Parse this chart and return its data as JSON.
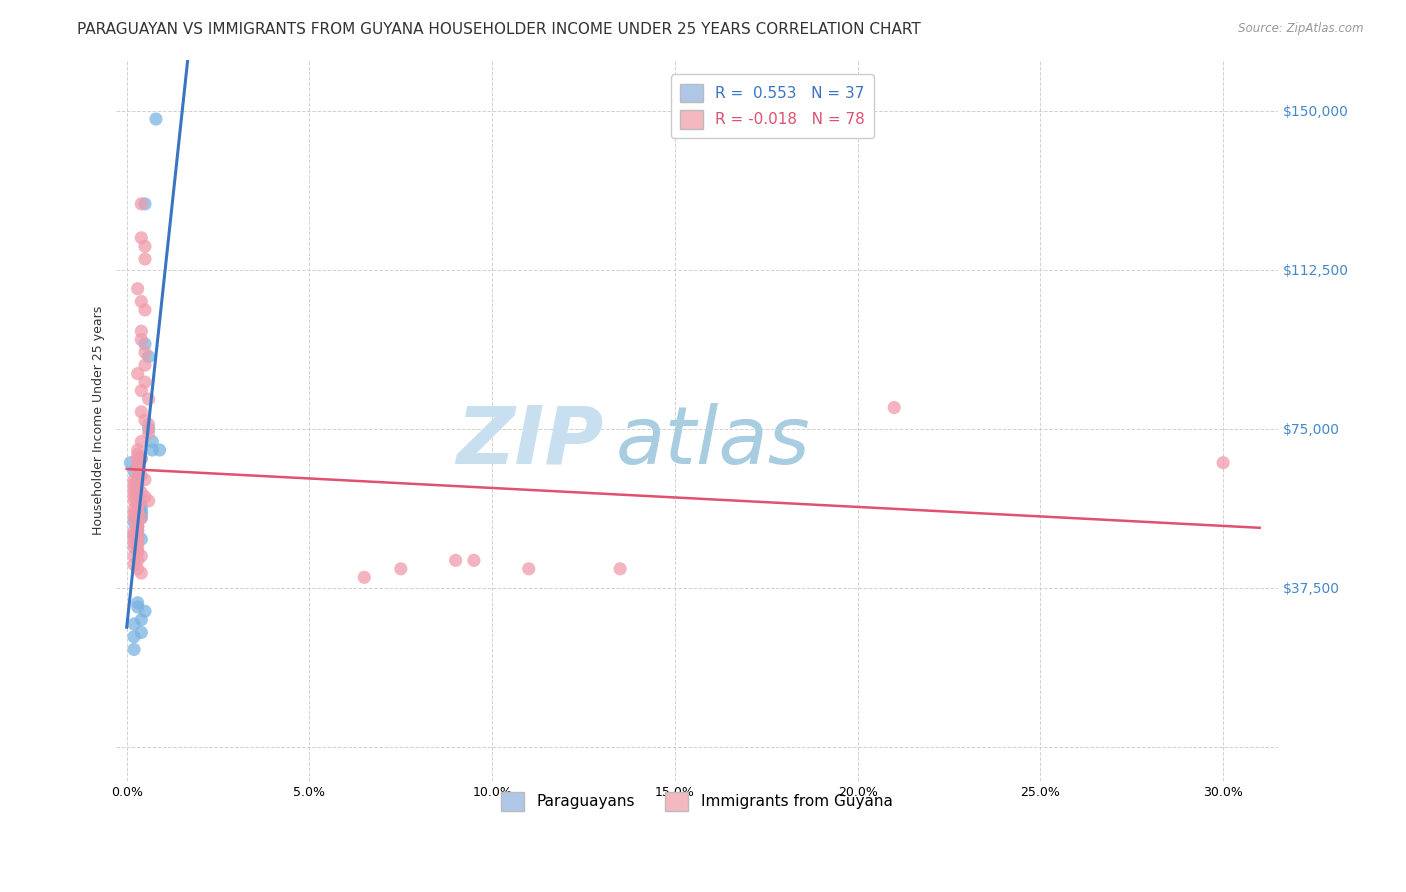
{
  "title": "PARAGUAYAN VS IMMIGRANTS FROM GUYANA HOUSEHOLDER INCOME UNDER 25 YEARS CORRELATION CHART",
  "source": "Source: ZipAtlas.com",
  "ylabel": "Householder Income Under 25 years",
  "xlabel_ticks": [
    "0.0%",
    "5.0%",
    "10.0%",
    "15.0%",
    "20.0%",
    "25.0%",
    "30.0%"
  ],
  "xlabel_vals": [
    0.0,
    0.05,
    0.1,
    0.15,
    0.2,
    0.25,
    0.3
  ],
  "ylabel_vals": [
    0,
    37500,
    75000,
    112500,
    150000
  ],
  "xlim": [
    -0.003,
    0.315
  ],
  "ylim": [
    -8000,
    162000
  ],
  "legend_labels_bottom": [
    "Paraguayans",
    "Immigrants from Guyana"
  ],
  "paraguayan_x": [
    0.008,
    0.005,
    0.005,
    0.006,
    0.006,
    0.007,
    0.007,
    0.001,
    0.002,
    0.003,
    0.003,
    0.003,
    0.003,
    0.003,
    0.003,
    0.003,
    0.004,
    0.004,
    0.004,
    0.004,
    0.004,
    0.002,
    0.003,
    0.004,
    0.003,
    0.002,
    0.003,
    0.004,
    0.009,
    0.003,
    0.003,
    0.005,
    0.004,
    0.002,
    0.004,
    0.002,
    0.002
  ],
  "paraguayan_y": [
    148000,
    128000,
    95000,
    92000,
    75000,
    72000,
    70000,
    67000,
    65000,
    63000,
    63000,
    62000,
    61000,
    60000,
    58000,
    57000,
    57000,
    56000,
    55000,
    55000,
    54000,
    53000,
    52000,
    68000,
    51000,
    50000,
    50000,
    49000,
    70000,
    34000,
    33000,
    32000,
    30000,
    29000,
    27000,
    26000,
    23000
  ],
  "guyana_x": [
    0.004,
    0.004,
    0.005,
    0.005,
    0.003,
    0.004,
    0.005,
    0.004,
    0.004,
    0.005,
    0.005,
    0.003,
    0.005,
    0.004,
    0.006,
    0.004,
    0.005,
    0.006,
    0.006,
    0.004,
    0.003,
    0.003,
    0.003,
    0.004,
    0.003,
    0.003,
    0.003,
    0.004,
    0.005,
    0.003,
    0.003,
    0.004,
    0.005,
    0.006,
    0.003,
    0.003,
    0.003,
    0.004,
    0.003,
    0.003,
    0.003,
    0.003,
    0.003,
    0.002,
    0.002,
    0.003,
    0.004,
    0.002,
    0.002,
    0.002,
    0.002,
    0.002,
    0.002,
    0.003,
    0.002,
    0.002,
    0.002,
    0.003,
    0.003,
    0.002,
    0.002,
    0.002,
    0.003,
    0.003,
    0.003,
    0.002,
    0.003,
    0.002,
    0.003,
    0.004,
    0.065,
    0.075,
    0.09,
    0.095,
    0.11,
    0.135,
    0.21,
    0.3
  ],
  "guyana_y": [
    128000,
    120000,
    118000,
    115000,
    108000,
    105000,
    103000,
    98000,
    96000,
    93000,
    90000,
    88000,
    86000,
    84000,
    82000,
    79000,
    77000,
    76000,
    74000,
    72000,
    70000,
    69000,
    68000,
    68000,
    67000,
    66000,
    65000,
    64000,
    63000,
    62000,
    61000,
    60000,
    59000,
    58000,
    57000,
    56000,
    55000,
    54000,
    53000,
    52000,
    51000,
    50000,
    49000,
    48000,
    47000,
    46000,
    45000,
    63000,
    62000,
    61000,
    60000,
    59000,
    58000,
    57000,
    56000,
    55000,
    54000,
    53000,
    52000,
    51000,
    50000,
    49000,
    48000,
    47000,
    46000,
    45000,
    44000,
    43000,
    42000,
    41000,
    40000,
    42000,
    44000,
    44000,
    42000,
    42000,
    80000,
    67000
  ],
  "blue_dot_color": "#7ab3e0",
  "pink_dot_color": "#f09aaa",
  "blue_line_color": "#3a75c4",
  "pink_line_color": "#e05070",
  "watermark_zip": "ZIP",
  "watermark_atlas": "atlas",
  "watermark_color_zip": "#c8dff0",
  "watermark_color_atlas": "#a8cce0",
  "grid_color": "#cccccc",
  "background_color": "#ffffff",
  "title_fontsize": 11,
  "axis_label_fontsize": 9,
  "tick_fontsize": 9,
  "right_tick_color": "#4488cc",
  "legend_r_blue": "R =  0.553   N = 37",
  "legend_r_pink": "R = -0.018   N = 78",
  "legend_blue_color": "#aec6e8",
  "legend_pink_color": "#f4b8c1"
}
